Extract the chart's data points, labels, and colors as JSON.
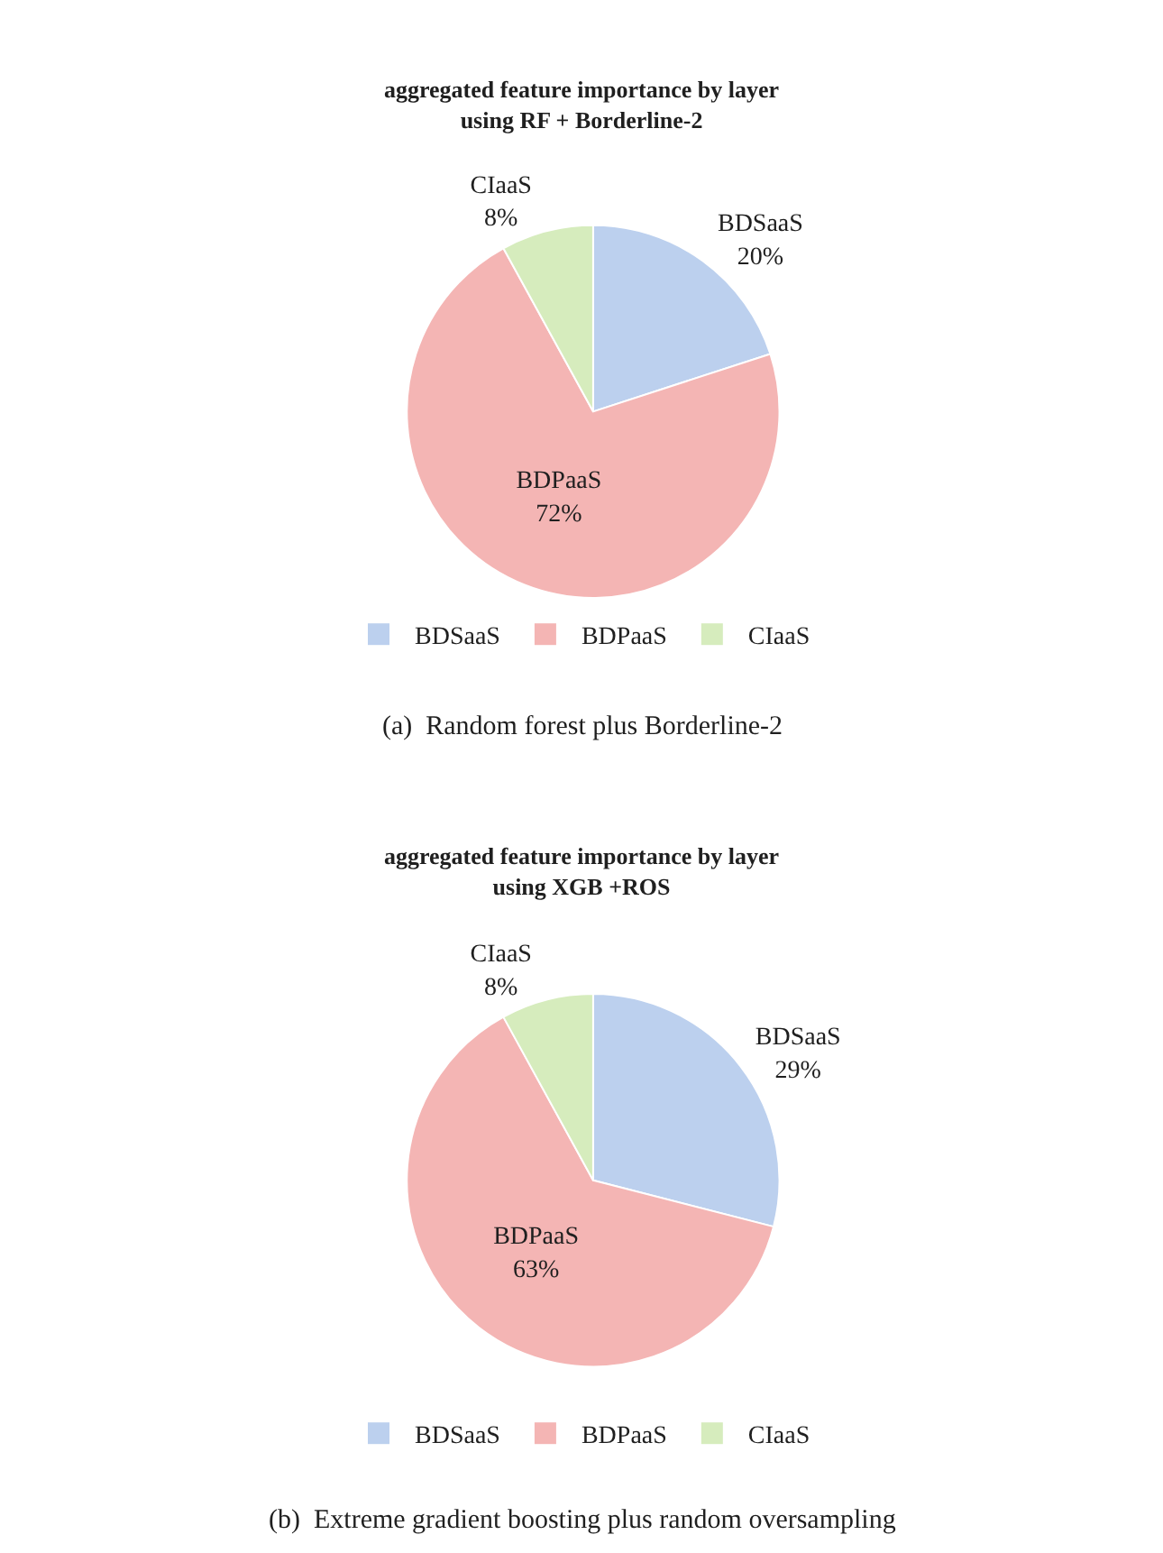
{
  "chart_data": [
    {
      "type": "pie",
      "title": "aggregated feature importance by layer\nusing RF + Borderline-2",
      "categories": [
        "BDSaaS",
        "BDPaaS",
        "CIaaS"
      ],
      "values": [
        20,
        72,
        8
      ],
      "value_labels": [
        "20%",
        "72%",
        "8%"
      ],
      "colors": [
        "#bcd0ee",
        "#f4b5b4",
        "#d6ecbd"
      ],
      "legend": "bottom",
      "annotations": [
        "(a)  Random forest plus Borderline-2"
      ]
    },
    {
      "type": "pie",
      "title": "aggregated feature importance by layer\nusing XGB +ROS",
      "categories": [
        "BDSaaS",
        "BDPaaS",
        "CIaaS"
      ],
      "values": [
        29,
        63,
        8
      ],
      "value_labels": [
        "29%",
        "63%",
        "8%"
      ],
      "colors": [
        "#bcd0ee",
        "#f4b5b4",
        "#d6ecbd"
      ],
      "legend": "bottom",
      "annotations": [
        "(b)  Extreme gradient boosting plus random oversampling"
      ]
    }
  ]
}
